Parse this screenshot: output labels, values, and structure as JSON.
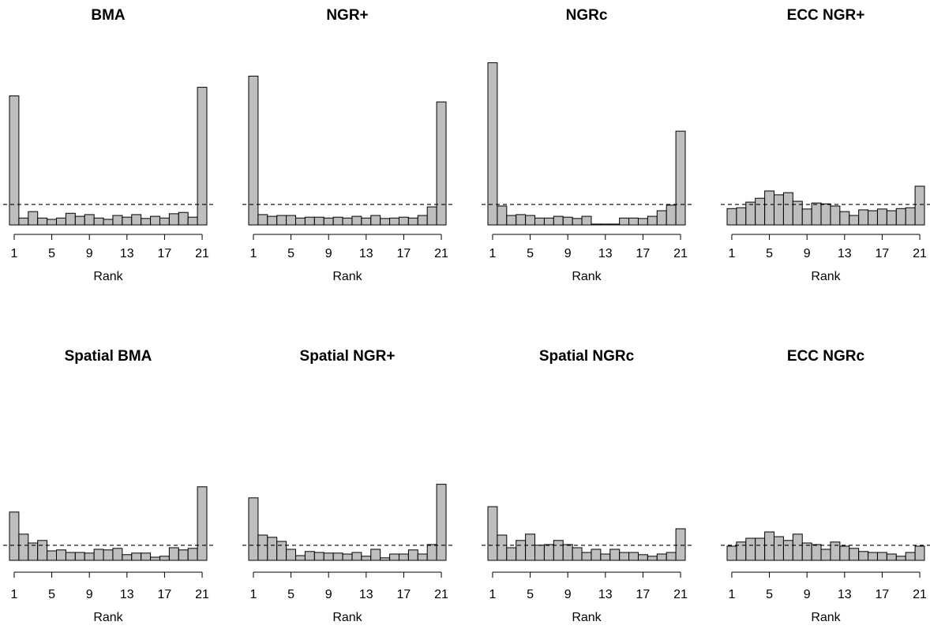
{
  "chart_data": [
    {
      "type": "bar",
      "title": "BMA",
      "xlabel": "Rank",
      "color": "#bebebe",
      "ylim": [
        0,
        0.4
      ],
      "reference": 0.0476,
      "categories": [
        1,
        null,
        null,
        null,
        5,
        null,
        null,
        null,
        9,
        null,
        null,
        null,
        13,
        null,
        null,
        null,
        17,
        null,
        null,
        null,
        21
      ],
      "values": [
        0.3,
        0.016,
        0.031,
        0.016,
        0.013,
        0.016,
        0.027,
        0.02,
        0.024,
        0.016,
        0.013,
        0.022,
        0.018,
        0.024,
        0.015,
        0.02,
        0.016,
        0.026,
        0.029,
        0.018,
        0.32
      ]
    },
    {
      "type": "bar",
      "title": "NGR+",
      "xlabel": "Rank",
      "color": "#bebebe",
      "ylim": [
        0,
        0.4
      ],
      "reference": 0.0476,
      "categories": [
        1,
        null,
        null,
        null,
        5,
        null,
        null,
        null,
        9,
        null,
        null,
        null,
        13,
        null,
        null,
        null,
        17,
        null,
        null,
        null,
        21
      ],
      "values": [
        0.346,
        0.024,
        0.02,
        0.022,
        0.022,
        0.016,
        0.018,
        0.018,
        0.016,
        0.018,
        0.016,
        0.02,
        0.016,
        0.022,
        0.015,
        0.016,
        0.018,
        0.016,
        0.022,
        0.042,
        0.286
      ]
    },
    {
      "type": "bar",
      "title": "NGRc",
      "xlabel": "Rank",
      "color": "#bebebe",
      "ylim": [
        0,
        0.4
      ],
      "reference": 0.0476,
      "categories": [
        1,
        null,
        null,
        null,
        5,
        null,
        null,
        null,
        9,
        null,
        null,
        null,
        13,
        null,
        null,
        null,
        17,
        null,
        null,
        null,
        21
      ],
      "values": [
        0.377,
        0.044,
        0.022,
        0.024,
        0.022,
        0.016,
        0.016,
        0.02,
        0.018,
        0.015,
        0.02,
        0.002,
        0.002,
        0.002,
        0.016,
        0.016,
        0.015,
        0.02,
        0.033,
        0.046,
        0.218
      ]
    },
    {
      "type": "bar",
      "title": "ECC NGR+",
      "xlabel": "Rank",
      "color": "#bebebe",
      "ylim": [
        0,
        0.4
      ],
      "reference": 0.0476,
      "categories": [
        1,
        null,
        null,
        null,
        5,
        null,
        null,
        null,
        9,
        null,
        null,
        null,
        13,
        null,
        null,
        null,
        17,
        null,
        null,
        null,
        21
      ],
      "values": [
        0.038,
        0.04,
        0.053,
        0.062,
        0.079,
        0.07,
        0.075,
        0.055,
        0.037,
        0.051,
        0.049,
        0.044,
        0.031,
        0.022,
        0.035,
        0.033,
        0.037,
        0.033,
        0.038,
        0.04,
        0.09
      ]
    },
    {
      "type": "bar",
      "title": "Spatial BMA",
      "xlabel": "Rank",
      "color": "#bebebe",
      "ylim": [
        0,
        0.4
      ],
      "reference": 0.0476,
      "categories": [
        1,
        null,
        null,
        null,
        5,
        null,
        null,
        null,
        9,
        null,
        null,
        null,
        13,
        null,
        null,
        null,
        17,
        null,
        null,
        null,
        21
      ],
      "values": [
        0.153,
        0.083,
        0.055,
        0.063,
        0.03,
        0.033,
        0.025,
        0.025,
        0.023,
        0.035,
        0.033,
        0.038,
        0.018,
        0.023,
        0.023,
        0.01,
        0.013,
        0.04,
        0.033,
        0.038,
        0.233
      ]
    },
    {
      "type": "bar",
      "title": "Spatial NGR+",
      "xlabel": "Rank",
      "color": "#bebebe",
      "ylim": [
        0,
        0.4
      ],
      "reference": 0.0476,
      "categories": [
        1,
        null,
        null,
        null,
        5,
        null,
        null,
        null,
        9,
        null,
        null,
        null,
        13,
        null,
        null,
        null,
        17,
        null,
        null,
        null,
        21
      ],
      "values": [
        0.198,
        0.08,
        0.073,
        0.06,
        0.035,
        0.015,
        0.028,
        0.025,
        0.023,
        0.023,
        0.02,
        0.025,
        0.013,
        0.035,
        0.008,
        0.02,
        0.02,
        0.033,
        0.02,
        0.05,
        0.241
      ]
    },
    {
      "type": "bar",
      "title": "Spatial NGRc",
      "xlabel": "Rank",
      "color": "#bebebe",
      "ylim": [
        0,
        0.4
      ],
      "reference": 0.0476,
      "categories": [
        1,
        null,
        null,
        null,
        5,
        null,
        null,
        null,
        9,
        null,
        null,
        null,
        13,
        null,
        null,
        null,
        17,
        null,
        null,
        null,
        21
      ],
      "values": [
        0.17,
        0.08,
        0.04,
        0.063,
        0.083,
        0.048,
        0.05,
        0.063,
        0.05,
        0.04,
        0.025,
        0.035,
        0.02,
        0.035,
        0.025,
        0.025,
        0.018,
        0.013,
        0.02,
        0.025,
        0.1
      ]
    },
    {
      "type": "bar",
      "title": "ECC NGRc",
      "xlabel": "Rank",
      "color": "#bebebe",
      "ylim": [
        0,
        0.4
      ],
      "reference": 0.0476,
      "categories": [
        1,
        null,
        null,
        null,
        5,
        null,
        null,
        null,
        9,
        null,
        null,
        null,
        13,
        null,
        null,
        null,
        17,
        null,
        null,
        null,
        21
      ],
      "values": [
        0.045,
        0.058,
        0.07,
        0.07,
        0.09,
        0.075,
        0.063,
        0.083,
        0.055,
        0.05,
        0.035,
        0.058,
        0.045,
        0.038,
        0.028,
        0.025,
        0.025,
        0.02,
        0.013,
        0.025,
        0.045
      ]
    }
  ]
}
